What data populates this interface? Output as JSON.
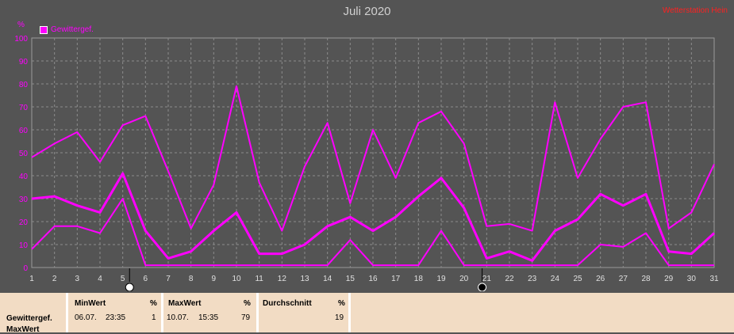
{
  "title": "Juli 2020",
  "brand": "Wetterstation Hein",
  "chart_data": {
    "type": "line",
    "title": "Juli 2020",
    "y_unit": "%",
    "ylim": [
      0,
      100
    ],
    "y_ticks": [
      "0",
      "10",
      "20",
      "30",
      "40",
      "50",
      "60",
      "70",
      "80",
      "90",
      "100"
    ],
    "categories": [
      "1",
      "2",
      "3",
      "4",
      "5",
      "6",
      "7",
      "8",
      "9",
      "10",
      "11",
      "12",
      "13",
      "14",
      "15",
      "16",
      "17",
      "18",
      "19",
      "20",
      "21",
      "22",
      "23",
      "24",
      "25",
      "26",
      "27",
      "28",
      "29",
      "30",
      "31"
    ],
    "legend": [
      "Gewittergef."
    ],
    "grid": true,
    "series": [
      {
        "name": "Gewittergef. Max",
        "color": "#ff00ff",
        "values": [
          48,
          54,
          59,
          46,
          62,
          66,
          42,
          17,
          36,
          79,
          37,
          16,
          44,
          63,
          28,
          60,
          39,
          63,
          68,
          54,
          18,
          19,
          16,
          72,
          39,
          56,
          70,
          72,
          17,
          24,
          45
        ]
      },
      {
        "name": "Gewittergef. Durchschnitt",
        "color": "#ff00ff",
        "values": [
          30,
          31,
          27,
          24,
          41,
          16,
          4,
          7,
          16,
          24,
          6,
          6,
          10,
          18,
          22,
          16,
          22,
          31,
          39,
          26,
          4,
          7,
          3,
          16,
          21,
          32,
          27,
          32,
          7,
          6,
          15
        ]
      },
      {
        "name": "Gewittergef. Min",
        "color": "#ff00ff",
        "values": [
          8,
          18,
          18,
          15,
          30,
          1,
          1,
          1,
          1,
          1,
          1,
          1,
          1,
          1,
          12,
          1,
          1,
          1,
          16,
          1,
          1,
          1,
          1,
          1,
          1,
          10,
          9,
          15,
          1,
          1,
          1
        ]
      }
    ],
    "markers": [
      {
        "x": 5.3,
        "symbol": "empty"
      },
      {
        "x": 20.8,
        "symbol": "filled"
      }
    ]
  },
  "panel": {
    "row1": "Gewittergef.",
    "row2": "MaxWert",
    "minwert_header": "MinWert",
    "minwert_unit": "%",
    "minwert_date": "06.07.",
    "minwert_time": "23:35",
    "minwert_value": "1",
    "maxwert_header": "MaxWert",
    "maxwert_unit": "%",
    "maxwert_date": "10.07.",
    "maxwert_time": "15:35",
    "maxwert_value": "79",
    "avg_header": "Durchschnitt",
    "avg_unit": "%",
    "avg_value": "19"
  }
}
